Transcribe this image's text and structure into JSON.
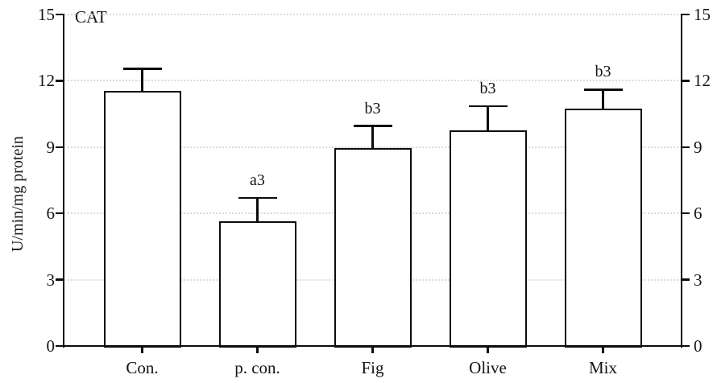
{
  "chart_data": {
    "type": "bar",
    "title": "CAT",
    "xlabel": "",
    "ylabel": "U/min/mg protein",
    "categories": [
      "Con.",
      "p. con.",
      "Fig",
      "Olive",
      "Mix"
    ],
    "values": [
      11.55,
      5.65,
      8.95,
      9.75,
      10.75
    ],
    "errors_plus": [
      1.0,
      1.05,
      1.0,
      1.1,
      0.85
    ],
    "annotations": [
      "",
      "a3",
      "b3",
      "b3",
      "b3"
    ],
    "yticks": [
      0,
      3,
      6,
      9,
      12,
      15
    ],
    "ylim": [
      0,
      15
    ],
    "right_axis_mirror": true,
    "grid": "horizontal-dotted",
    "legend": "none",
    "colors": {
      "bar_fill": "#ffffff",
      "bar_border": "#0c0c0c",
      "axis": "#0c0c0c",
      "gridline": "#dcdcdc",
      "text": "#141414"
    }
  }
}
